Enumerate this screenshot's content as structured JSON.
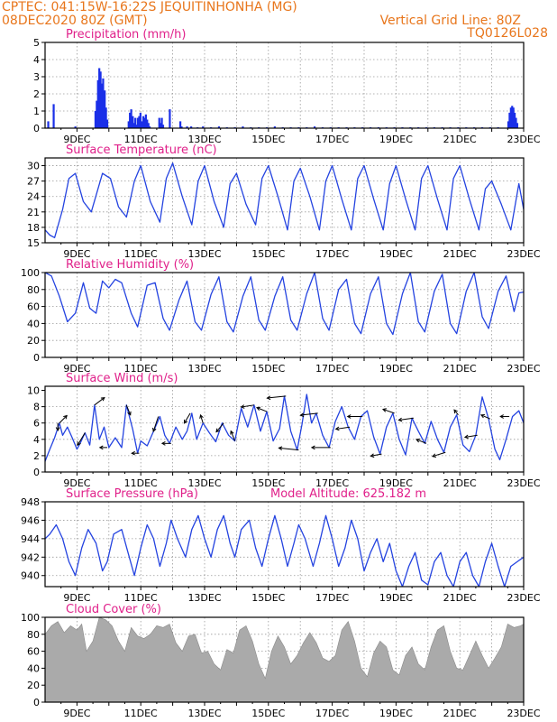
{
  "header": {
    "line1_left": "CPTEC:  041:15W-16:22S  JEQUITINHONHA (MG)",
    "line2_left": "08DEC2020 80Z (GMT)",
    "line2_right": "Vertical Grid Line: 80Z",
    "line3_right": "TQ0126L028"
  },
  "colors": {
    "header": "#e8761c",
    "title": "#e0208a",
    "line": "#2443e0",
    "bar": "#1a2fe8",
    "cloud": "#aaaaaa",
    "grid": "#9a9a9a",
    "axis": "#000000",
    "arrow": "#000000"
  },
  "x_axis": {
    "range": [
      "08DEC2020",
      "23DEC2020"
    ],
    "tick_labels": [
      "9DEC",
      "11DEC",
      "13DEC",
      "15DEC",
      "17DEC",
      "19DEC",
      "21DEC",
      "23DEC"
    ],
    "grid_days": [
      9,
      10,
      11,
      12,
      13,
      14,
      15,
      16,
      17,
      18,
      19,
      20,
      21,
      22,
      23
    ]
  },
  "chart_data": [
    {
      "id": "precip",
      "type": "bar",
      "title": "Precipitation (mm/h)",
      "ylim": [
        0,
        5
      ],
      "yticks": [
        0,
        1,
        2,
        3,
        4,
        5
      ],
      "x_unit": "day of Dec 2020",
      "x": [
        8.1,
        8.27,
        8.95,
        9.58,
        9.62,
        9.66,
        9.7,
        9.74,
        9.78,
        9.82,
        9.87,
        9.91,
        9.95,
        10.62,
        10.66,
        10.7,
        10.75,
        10.79,
        10.83,
        10.87,
        10.91,
        10.95,
        10.99,
        11.03,
        11.08,
        11.12,
        11.16,
        11.2,
        11.24,
        11.28,
        11.58,
        11.62,
        11.66,
        11.7,
        11.91,
        12.24,
        12.28,
        12.45,
        12.58,
        12.78,
        12.95,
        13.2,
        13.45,
        13.7,
        13.95,
        14.2,
        14.45,
        14.7,
        14.95,
        15.2,
        15.45,
        15.7,
        15.95,
        16.2,
        16.45,
        16.7,
        16.95,
        17.2,
        17.45,
        17.7,
        17.95,
        18.2,
        18.45,
        18.7,
        18.95,
        19.2,
        19.45,
        19.7,
        19.95,
        20.2,
        20.45,
        20.7,
        20.95,
        21.2,
        21.45,
        21.7,
        21.95,
        22.2,
        22.52,
        22.56,
        22.6,
        22.64,
        22.68,
        22.72,
        22.76,
        22.8
      ],
      "values": [
        0.4,
        1.4,
        0.1,
        1.0,
        1.6,
        2.8,
        3.5,
        3.3,
        2.6,
        2.9,
        2.2,
        1.2,
        0.5,
        0.4,
        0.9,
        1.1,
        0.7,
        0.3,
        0.6,
        0.2,
        0.6,
        0.7,
        0.9,
        0.4,
        0.7,
        0.6,
        0.8,
        0.5,
        0.3,
        0.1,
        0.6,
        0.3,
        0.6,
        0.2,
        1.1,
        0.4,
        0.1,
        0.1,
        0.1,
        0.05,
        0.1,
        0.05,
        0.1,
        0.05,
        0.05,
        0.1,
        0.05,
        0.05,
        0.05,
        0.1,
        0.05,
        0.05,
        0.05,
        0.05,
        0.1,
        0.05,
        0.05,
        0.05,
        0.05,
        0.05,
        0.05,
        0.05,
        0.05,
        0.05,
        0.05,
        0.05,
        0.05,
        0.05,
        0.05,
        0.05,
        0.05,
        0.05,
        0.05,
        0.05,
        0.05,
        0.05,
        0.05,
        0.05,
        0.4,
        0.9,
        1.2,
        1.3,
        1.2,
        0.9,
        0.6,
        0.3
      ]
    },
    {
      "id": "temperature",
      "type": "line",
      "title": "Surface Temperature (nC)",
      "ylim": [
        15,
        31.5
      ],
      "yticks": [
        15,
        18,
        21,
        24,
        27,
        30
      ],
      "grid_y": [
        18,
        21,
        24,
        27,
        30
      ],
      "x_unit": "day of Dec 2020",
      "x": [
        8.0,
        8.15,
        8.3,
        8.55,
        8.75,
        8.95,
        9.2,
        9.45,
        9.8,
        10.05,
        10.3,
        10.55,
        10.8,
        11.0,
        11.3,
        11.6,
        11.8,
        12.0,
        12.3,
        12.6,
        12.8,
        13.0,
        13.3,
        13.6,
        13.8,
        14.0,
        14.3,
        14.6,
        14.8,
        15.0,
        15.3,
        15.6,
        15.8,
        16.0,
        16.3,
        16.6,
        16.8,
        17.0,
        17.3,
        17.6,
        17.8,
        18.0,
        18.3,
        18.6,
        18.8,
        19.0,
        19.3,
        19.6,
        19.8,
        20.0,
        20.3,
        20.6,
        20.8,
        21.0,
        21.3,
        21.6,
        21.8,
        22.0,
        22.3,
        22.6,
        22.85,
        23.0
      ],
      "values": [
        17.5,
        16.5,
        16.0,
        21.5,
        27.5,
        28.5,
        23.0,
        21.0,
        28.5,
        27.5,
        22.0,
        20.0,
        27.0,
        30.0,
        23.0,
        19.0,
        27.5,
        30.5,
        24.0,
        18.5,
        27.0,
        30.0,
        23.0,
        18.0,
        26.5,
        28.5,
        22.5,
        18.5,
        27.5,
        30.0,
        24.0,
        17.5,
        27.0,
        29.5,
        24.0,
        17.5,
        27.0,
        30.0,
        23.5,
        17.5,
        27.5,
        30.0,
        23.5,
        17.5,
        26.5,
        30.0,
        23.5,
        17.5,
        27.5,
        30.0,
        23.5,
        17.5,
        27.5,
        30.0,
        23.5,
        17.5,
        25.5,
        27.0,
        22.5,
        17.5,
        26.5,
        21.5
      ]
    },
    {
      "id": "humidity",
      "type": "line",
      "title": "Relative Humidity (%)",
      "ylim": [
        0,
        100
      ],
      "yticks": [
        0,
        20,
        40,
        60,
        80,
        100
      ],
      "grid_y": [
        20,
        40,
        60,
        80
      ],
      "x_unit": "day of Dec 2020",
      "x": [
        8.0,
        8.2,
        8.45,
        8.7,
        8.95,
        9.2,
        9.4,
        9.6,
        9.8,
        10.0,
        10.2,
        10.4,
        10.7,
        10.9,
        11.2,
        11.45,
        11.7,
        11.9,
        12.2,
        12.45,
        12.7,
        12.9,
        13.2,
        13.45,
        13.7,
        13.9,
        14.2,
        14.45,
        14.7,
        14.9,
        15.2,
        15.45,
        15.7,
        15.9,
        16.2,
        16.45,
        16.7,
        16.9,
        17.2,
        17.45,
        17.7,
        17.9,
        18.2,
        18.45,
        18.7,
        18.9,
        19.2,
        19.45,
        19.7,
        19.9,
        20.2,
        20.45,
        20.7,
        20.9,
        21.2,
        21.45,
        21.7,
        21.9,
        22.2,
        22.45,
        22.7,
        22.85,
        23.0
      ],
      "values": [
        100,
        96,
        72,
        42,
        52,
        88,
        58,
        52,
        90,
        82,
        92,
        88,
        52,
        36,
        85,
        88,
        46,
        32,
        68,
        90,
        42,
        32,
        74,
        95,
        42,
        30,
        72,
        95,
        44,
        32,
        72,
        95,
        44,
        32,
        75,
        100,
        46,
        32,
        80,
        92,
        40,
        28,
        75,
        95,
        40,
        27,
        75,
        100,
        42,
        30,
        78,
        98,
        40,
        28,
        78,
        100,
        48,
        34,
        78,
        96,
        54,
        76,
        77
      ]
    },
    {
      "id": "wind",
      "type": "line",
      "title": "Surface Wind (m/s)",
      "ylim": [
        0,
        10.5
      ],
      "yticks": [
        0,
        2,
        4,
        6,
        8,
        10
      ],
      "grid_y": [
        2,
        4,
        6,
        8
      ],
      "x_unit": "day of Dec 2020",
      "x": [
        8.0,
        8.15,
        8.3,
        8.45,
        8.55,
        8.7,
        8.85,
        9.0,
        9.1,
        9.25,
        9.4,
        9.55,
        9.7,
        9.85,
        10.0,
        10.2,
        10.4,
        10.55,
        10.75,
        10.9,
        11.0,
        11.2,
        11.4,
        11.6,
        11.75,
        11.9,
        12.1,
        12.3,
        12.45,
        12.6,
        12.75,
        12.95,
        13.15,
        13.35,
        13.55,
        13.75,
        13.95,
        14.15,
        14.35,
        14.55,
        14.75,
        14.95,
        15.15,
        15.35,
        15.5,
        15.7,
        15.9,
        16.05,
        16.2,
        16.35,
        16.5,
        16.7,
        16.9,
        17.1,
        17.3,
        17.5,
        17.7,
        17.9,
        18.1,
        18.3,
        18.5,
        18.7,
        18.9,
        19.1,
        19.3,
        19.5,
        19.7,
        19.9,
        20.1,
        20.3,
        20.5,
        20.7,
        20.9,
        21.1,
        21.3,
        21.5,
        21.7,
        21.9,
        22.1,
        22.25,
        22.45,
        22.65,
        22.85,
        23.0
      ],
      "values": [
        1.3,
        2.8,
        4.2,
        6.0,
        4.5,
        5.5,
        4.2,
        2.8,
        3.5,
        4.8,
        3.3,
        8.2,
        4.0,
        5.5,
        3.0,
        4.2,
        3.0,
        8.2,
        5.2,
        2.3,
        3.8,
        3.2,
        5.0,
        6.8,
        4.5,
        3.5,
        5.5,
        4.0,
        5.0,
        7.2,
        4.0,
        6.0,
        4.8,
        3.7,
        6.0,
        4.5,
        3.8,
        7.8,
        5.5,
        8.2,
        5.0,
        7.4,
        3.8,
        5.3,
        9.3,
        5.0,
        2.7,
        5.8,
        9.5,
        6.0,
        7.2,
        4.5,
        3.0,
        6.2,
        8.0,
        5.5,
        4.0,
        6.8,
        7.5,
        4.3,
        2.2,
        5.5,
        7.2,
        4.0,
        2.1,
        6.6,
        5.0,
        3.5,
        6.2,
        4.0,
        2.4,
        5.5,
        7.0,
        3.3,
        2.5,
        4.5,
        9.2,
        6.5,
        2.8,
        1.5,
        4.0,
        6.8,
        7.5,
        6.0
      ],
      "arrows": {
        "x": [
          8.4,
          8.45,
          9.25,
          9.55,
          9.95,
          10.55,
          10.95,
          11.55,
          11.95,
          12.55,
          12.95,
          13.6,
          13.95,
          14.55,
          14.95,
          15.55,
          15.95,
          16.55,
          16.95,
          17.55,
          17.95,
          18.55,
          18.95,
          19.55,
          19.95,
          20.55,
          20.95,
          21.55,
          21.95,
          22.55
        ],
        "u": [
          0.0,
          1.5,
          -1.5,
          2.0,
          -1.5,
          0.8,
          -1.5,
          -1.0,
          -1.8,
          -1.2,
          -0.5,
          -1.5,
          -0.8,
          -2.6,
          -2.0,
          -3.8,
          -4.0,
          -3.5,
          -3.8,
          -2.8,
          -3.0,
          -2.2,
          -2.3,
          -3.0,
          -2.0,
          -2.6,
          -0.8,
          -2.5,
          -1.8,
          -1.8
        ],
        "v": [
          -1.5,
          1.5,
          -2.5,
          1.5,
          0.0,
          -2.0,
          0.0,
          -3.0,
          0.0,
          -2.0,
          1.6,
          -1.8,
          2.0,
          -0.4,
          0.8,
          -0.4,
          0.4,
          -0.4,
          0.0,
          -0.4,
          0.0,
          -0.4,
          0.8,
          -0.4,
          0.8,
          -0.8,
          1.0,
          -0.4,
          0.8,
          0.0
        ]
      }
    },
    {
      "id": "pressure",
      "type": "line",
      "title": "Surface Pressure (hPa)",
      "annotation": "Model Altitude: 625.182  m",
      "ylim": [
        938.8,
        948
      ],
      "yticks": [
        940,
        942,
        944,
        946,
        948
      ],
      "grid_y": [
        940,
        942,
        944,
        946
      ],
      "x_unit": "day of Dec 2020",
      "x": [
        8.0,
        8.15,
        8.35,
        8.55,
        8.75,
        8.95,
        9.15,
        9.35,
        9.6,
        9.8,
        9.95,
        10.15,
        10.4,
        10.6,
        10.8,
        11.0,
        11.2,
        11.4,
        11.6,
        11.8,
        11.95,
        12.15,
        12.4,
        12.6,
        12.8,
        13.0,
        13.2,
        13.4,
        13.6,
        13.8,
        13.95,
        14.15,
        14.4,
        14.6,
        14.8,
        15.0,
        15.2,
        15.4,
        15.6,
        15.8,
        15.95,
        16.15,
        16.4,
        16.6,
        16.8,
        17.0,
        17.2,
        17.4,
        17.6,
        17.8,
        18.0,
        18.2,
        18.4,
        18.6,
        18.8,
        19.0,
        19.2,
        19.4,
        19.6,
        19.8,
        20.0,
        20.2,
        20.4,
        20.6,
        20.8,
        21.0,
        21.2,
        21.4,
        21.6,
        21.8,
        22.0,
        22.2,
        22.4,
        22.6,
        22.8,
        23.0
      ],
      "values": [
        944.0,
        944.5,
        945.5,
        944.0,
        941.5,
        940.0,
        943.0,
        945.0,
        943.5,
        940.5,
        941.5,
        944.5,
        945.0,
        942.5,
        940.0,
        943.0,
        945.5,
        944.0,
        941.0,
        943.5,
        946.0,
        944.0,
        942.0,
        945.0,
        946.5,
        944.0,
        942.0,
        945.0,
        946.5,
        943.5,
        942.0,
        945.0,
        946.0,
        943.0,
        941.0,
        944.0,
        946.5,
        944.0,
        941.0,
        943.5,
        945.5,
        944.0,
        941.0,
        943.5,
        946.5,
        944.0,
        941.0,
        943.0,
        946.0,
        944.0,
        940.5,
        942.5,
        944.0,
        941.5,
        943.5,
        940.5,
        938.8,
        941.0,
        942.5,
        939.5,
        939.0,
        941.5,
        942.5,
        940.0,
        938.8,
        941.5,
        942.5,
        940.0,
        938.8,
        941.5,
        943.5,
        941.0,
        938.8,
        941.0,
        941.5,
        942.0
      ]
    },
    {
      "id": "cloud",
      "type": "area",
      "title": "Cloud Cover (%)",
      "ylim": [
        0,
        100
      ],
      "yticks": [
        0,
        20,
        40,
        60,
        80,
        100
      ],
      "grid_y": [
        20,
        40,
        60,
        80
      ],
      "x_unit": "day of Dec 2020",
      "x": [
        8.0,
        8.2,
        8.4,
        8.6,
        8.8,
        9.0,
        9.15,
        9.3,
        9.5,
        9.7,
        9.9,
        10.1,
        10.3,
        10.5,
        10.7,
        10.9,
        11.1,
        11.3,
        11.5,
        11.7,
        11.9,
        12.1,
        12.3,
        12.5,
        12.7,
        12.9,
        13.1,
        13.3,
        13.5,
        13.7,
        13.9,
        14.1,
        14.3,
        14.5,
        14.7,
        14.9,
        15.1,
        15.3,
        15.5,
        15.7,
        15.9,
        16.1,
        16.3,
        16.5,
        16.7,
        16.9,
        17.1,
        17.3,
        17.5,
        17.7,
        17.9,
        18.1,
        18.3,
        18.5,
        18.7,
        18.9,
        19.1,
        19.3,
        19.5,
        19.7,
        19.9,
        20.1,
        20.3,
        20.5,
        20.7,
        20.9,
        21.1,
        21.3,
        21.5,
        21.7,
        21.9,
        22.1,
        22.3,
        22.5,
        22.7,
        22.9,
        23.0
      ],
      "values": [
        80,
        90,
        95,
        82,
        90,
        85,
        92,
        60,
        72,
        100,
        97,
        90,
        72,
        60,
        88,
        78,
        75,
        80,
        90,
        88,
        92,
        70,
        60,
        78,
        80,
        58,
        60,
        45,
        38,
        62,
        58,
        85,
        90,
        72,
        45,
        28,
        60,
        78,
        65,
        45,
        55,
        70,
        82,
        70,
        52,
        48,
        55,
        85,
        95,
        72,
        40,
        30,
        58,
        72,
        65,
        38,
        32,
        55,
        65,
        45,
        38,
        65,
        85,
        90,
        60,
        40,
        38,
        55,
        72,
        55,
        40,
        52,
        65,
        92,
        88,
        90,
        92
      ]
    }
  ]
}
